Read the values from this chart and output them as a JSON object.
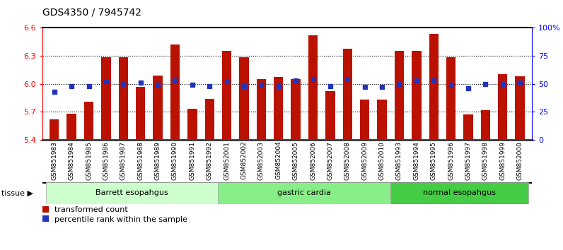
{
  "title": "GDS4350 / 7945742",
  "samples": [
    "GSM851983",
    "GSM851984",
    "GSM851985",
    "GSM851986",
    "GSM851987",
    "GSM851988",
    "GSM851989",
    "GSM851990",
    "GSM851991",
    "GSM851992",
    "GSM852001",
    "GSM852002",
    "GSM852003",
    "GSM852004",
    "GSM852005",
    "GSM852006",
    "GSM852007",
    "GSM852008",
    "GSM852009",
    "GSM852010",
    "GSM851993",
    "GSM851994",
    "GSM851995",
    "GSM851996",
    "GSM851997",
    "GSM851998",
    "GSM851999",
    "GSM852000"
  ],
  "red_values": [
    5.62,
    5.68,
    5.81,
    6.28,
    6.28,
    5.97,
    6.09,
    6.42,
    5.73,
    5.84,
    6.35,
    6.28,
    6.05,
    6.07,
    6.05,
    6.52,
    5.92,
    6.37,
    5.83,
    5.83,
    6.35,
    6.35,
    6.53,
    6.28,
    5.67,
    5.72,
    6.1,
    6.08
  ],
  "blue_pct": [
    43,
    48,
    48,
    52,
    50,
    51,
    49,
    53,
    49,
    48,
    52,
    48,
    49,
    48,
    53,
    54,
    48,
    54,
    47,
    47,
    50,
    53,
    53,
    49,
    46,
    50,
    50,
    51
  ],
  "groups": [
    {
      "label": "Barrett esopahgus",
      "start": 0,
      "end": 10,
      "color": "#ccffcc"
    },
    {
      "label": "gastric cardia",
      "start": 10,
      "end": 20,
      "color": "#88ee88"
    },
    {
      "label": "normal esopahgus",
      "start": 20,
      "end": 28,
      "color": "#44cc44"
    }
  ],
  "ylim_left": [
    5.4,
    6.6
  ],
  "yticks_left": [
    5.4,
    5.7,
    6.0,
    6.3,
    6.6
  ],
  "ylim_right": [
    0,
    100
  ],
  "yticks_right": [
    0,
    25,
    50,
    75,
    100
  ],
  "ytick_labels_right": [
    "0",
    "25",
    "50",
    "75",
    "100%"
  ],
  "bar_bottom": 5.4,
  "red_color": "#bb1100",
  "blue_color": "#2233bb",
  "legend_red": "transformed count",
  "legend_blue": "percentile rank within the sample",
  "grid_yticks": [
    5.7,
    6.0,
    6.3
  ]
}
